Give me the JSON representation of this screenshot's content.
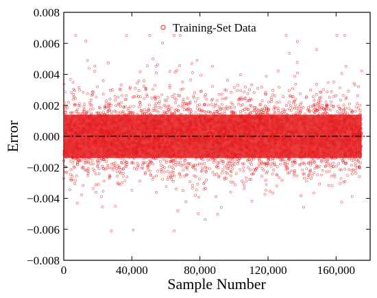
{
  "chart_data": {
    "type": "scatter",
    "xlabel": "Sample Number",
    "ylabel": "Error",
    "xlim": [
      0,
      180000
    ],
    "ylim": [
      -0.008,
      0.008
    ],
    "xticks": [
      0,
      40000,
      80000,
      120000,
      160000
    ],
    "xtick_labels": [
      "0",
      "40,000",
      "80,000",
      "120,000",
      "160,000"
    ],
    "yticks": [
      -0.008,
      -0.006,
      -0.004,
      -0.002,
      0.0,
      0.002,
      0.004,
      0.006,
      0.008
    ],
    "ytick_labels": [
      "−0.008",
      "−0.006",
      "−0.004",
      "−0.002",
      "0.000",
      "0.002",
      "0.004",
      "0.006",
      "0.008"
    ],
    "grid": false,
    "legend": {
      "position": "top-center",
      "entries": [
        "Training-Set Data"
      ]
    },
    "reference_line": {
      "y": 0.0,
      "style": "dash-dot",
      "color": "#000000"
    },
    "series": [
      {
        "name": "Training-Set Data",
        "marker": "open-circle",
        "color": "#e41a1c",
        "n_samples": 175000,
        "mean": 0.0,
        "core_band": [
          -0.002,
          0.002
        ],
        "extreme_range": [
          -0.0061,
          0.0065
        ],
        "x_range": [
          0,
          175000
        ]
      }
    ]
  }
}
